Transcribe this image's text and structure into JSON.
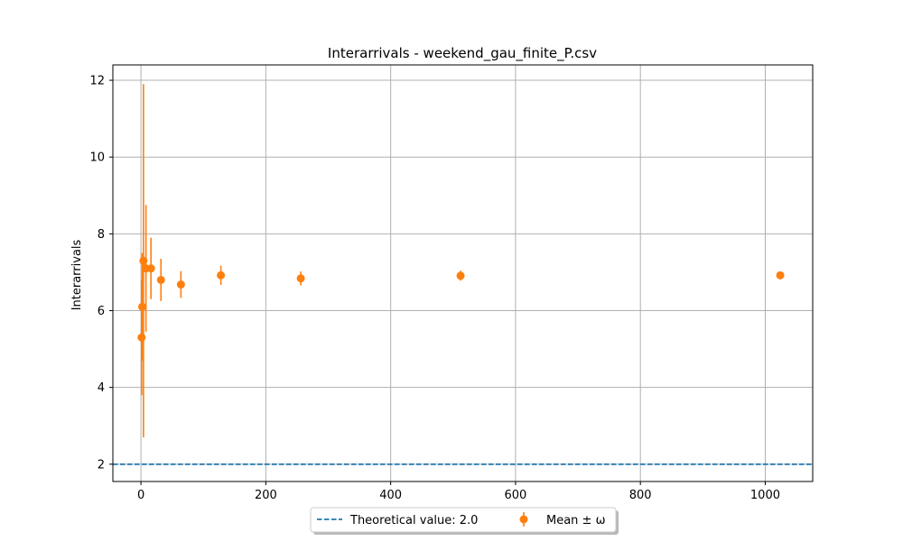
{
  "chart_data": {
    "type": "scatter",
    "title": "Interarrivals - weekend_gau_finite_P.csv",
    "xlabel": "",
    "ylabel": "Interarrivals",
    "xlim": [
      -45,
      1076
    ],
    "ylim": [
      1.55,
      12.4
    ],
    "xticks": [
      0,
      200,
      400,
      600,
      800,
      1000
    ],
    "yticks": [
      2,
      4,
      6,
      8,
      10,
      12
    ],
    "grid": true,
    "legend_position": "bottom-center",
    "colors": {
      "theoretical": "#1f77b4",
      "mean": "#ff7f0e"
    },
    "theoretical": {
      "name": "Theoretical value: 2.0",
      "value": 2.0
    },
    "series": [
      {
        "name": "Mean ± ω",
        "points": [
          {
            "x": 1,
            "y": 5.3,
            "err": 1.5
          },
          {
            "x": 2,
            "y": 6.1,
            "err": 1.4
          },
          {
            "x": 4,
            "y": 7.3,
            "err": 4.6
          },
          {
            "x": 8,
            "y": 7.1,
            "err": 1.65
          },
          {
            "x": 16,
            "y": 7.1,
            "err": 0.8
          },
          {
            "x": 32,
            "y": 6.8,
            "err": 0.55
          },
          {
            "x": 64,
            "y": 6.68,
            "err": 0.35
          },
          {
            "x": 128,
            "y": 6.92,
            "err": 0.25
          },
          {
            "x": 256,
            "y": 6.84,
            "err": 0.18
          },
          {
            "x": 512,
            "y": 6.91,
            "err": 0.13
          },
          {
            "x": 1024,
            "y": 6.92,
            "err": 0.08
          }
        ]
      }
    ]
  }
}
